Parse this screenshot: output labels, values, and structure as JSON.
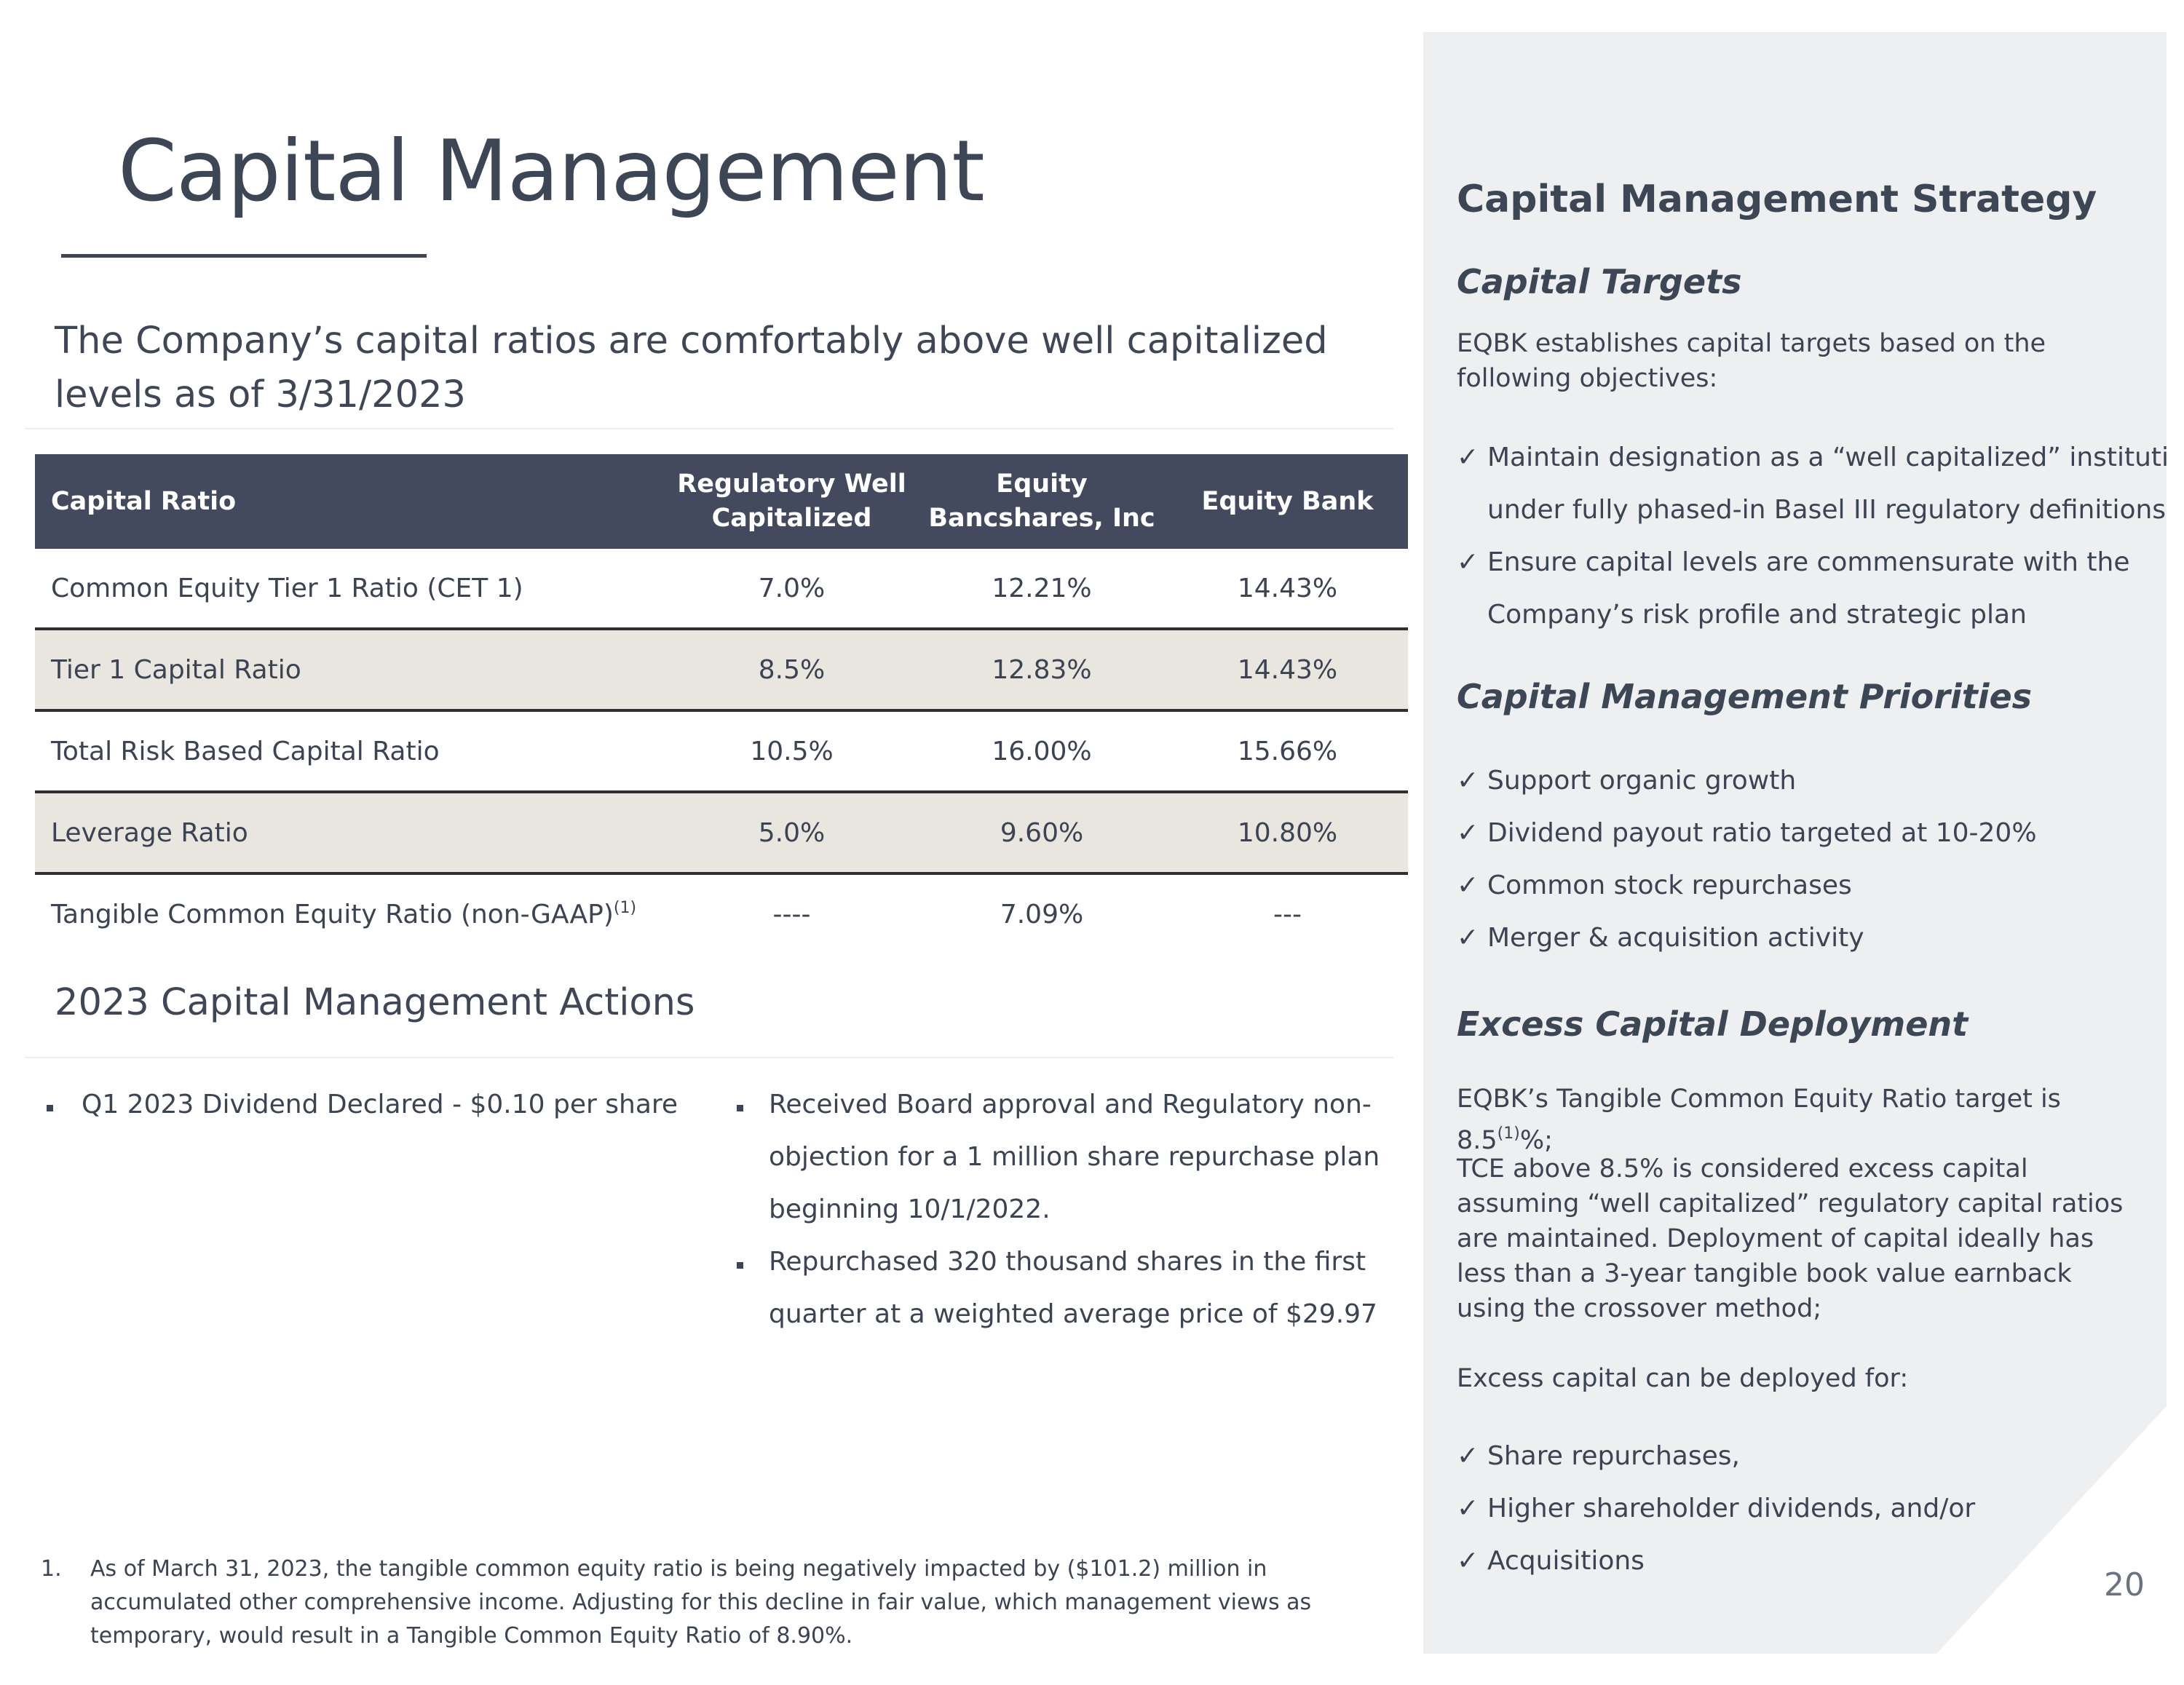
{
  "title": "Capital Management",
  "subtitle": "The Company’s capital ratios are comfortably above well capitalized levels as of 3/31/2023",
  "table": {
    "headers": [
      "Capital Ratio",
      "Regulatory Well Capitalized",
      "Equity Bancshares, Inc",
      "Equity Bank"
    ],
    "rows": [
      {
        "label": "Common Equity Tier 1 Ratio (CET 1)",
        "reg": "7.0%",
        "inc": "12.21%",
        "bank": "14.43%"
      },
      {
        "label": "Tier 1 Capital Ratio",
        "reg": "8.5%",
        "inc": "12.83%",
        "bank": "14.43%"
      },
      {
        "label": "Total Risk Based Capital Ratio",
        "reg": "10.5%",
        "inc": "16.00%",
        "bank": "15.66%"
      },
      {
        "label": "Leverage Ratio",
        "reg": "5.0%",
        "inc": "9.60%",
        "bank": "10.80%"
      },
      {
        "label": "Tangible Common Equity Ratio (non-GAAP)",
        "label_sup": "(1)",
        "reg": "----",
        "inc": "7.09%",
        "bank": "---"
      }
    ]
  },
  "actions": {
    "heading": "2023 Capital Management Actions",
    "left_bullets": [
      "Q1 2023 Dividend Declared - $0.10 per share"
    ],
    "right_bullets": [
      {
        "lines": [
          "Received Board approval and Regulatory non-",
          "objection for a 1 million share repurchase plan",
          "beginning 10/1/2022."
        ]
      },
      {
        "lines": [
          "Repurchased 320 thousand shares in the first",
          "quarter at a weighted average price of $29.97"
        ]
      }
    ]
  },
  "footnote": {
    "number": "1.",
    "text": "As of March 31, 2023, the tangible common equity ratio is being negatively impacted by ($101.2) million in accumulated other comprehensive income.  Adjusting for this decline in fair value, which management views as temporary, would result in a Tangible Common Equity Ratio of 8.90%."
  },
  "panel": {
    "heading": "Capital Management Strategy",
    "targets": {
      "title": "Capital Targets",
      "intro": "EQBK establishes capital targets based on the following objectives:",
      "checks": [
        {
          "lines": [
            "Maintain designation as a “well capitalized” institution",
            "under fully phased-in Basel III regulatory definitions"
          ]
        },
        {
          "lines": [
            "Ensure capital levels are commensurate with the",
            "Company’s risk profile and strategic plan"
          ]
        }
      ]
    },
    "priorities": {
      "title": "Capital Management Priorities",
      "checks": [
        "Support organic growth",
        "Dividend payout ratio targeted at 10-20%",
        "Common stock repurchases",
        "Merger & acquisition activity"
      ]
    },
    "excess": {
      "title": "Excess Capital Deployment",
      "target_text": "EQBK’s Tangible Common Equity Ratio target is 8.5",
      "target_sup": "(1)",
      "target_end": "%;",
      "tce_text": "TCE above 8.5% is considered excess capital assuming “well capitalized” regulatory capital ratios are maintained. Deployment of capital ideally has less than a 3-year tangible book value earnback using the crossover method;",
      "deploy_intro": "Excess capital can be deployed for:",
      "checks": [
        "Share repurchases,",
        "Higher shareholder dividends, and/or",
        "Acquisitions"
      ]
    },
    "check_glyph": "✓"
  },
  "page_number": "20"
}
